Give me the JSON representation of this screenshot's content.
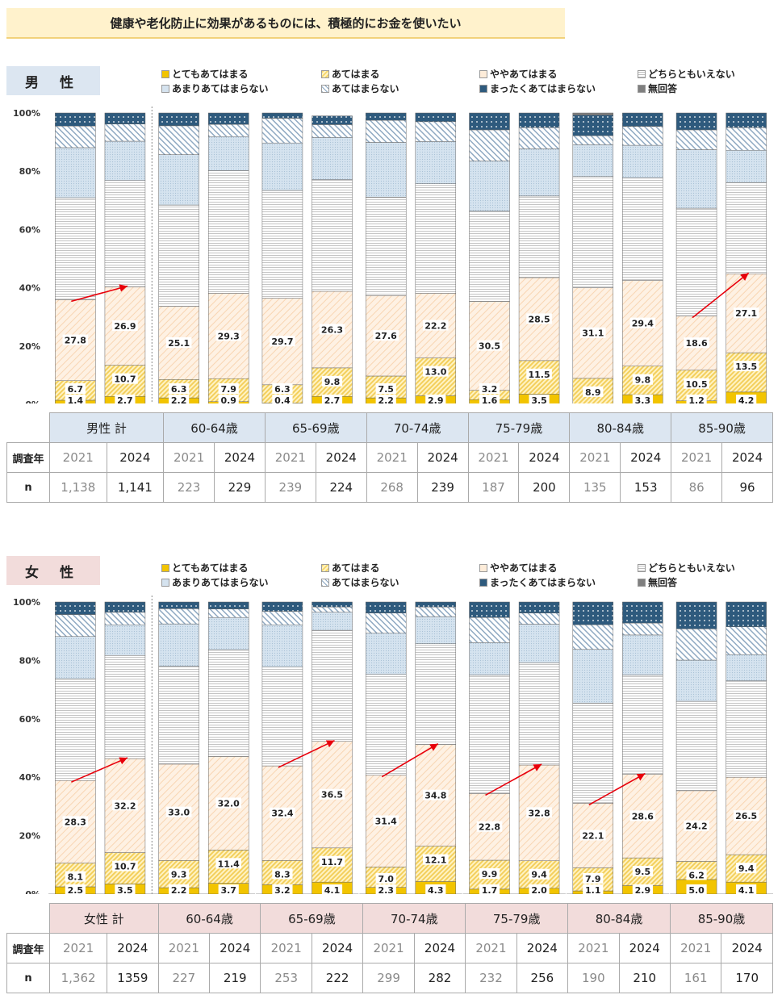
{
  "title": "健康や老化防止に効果があるものには、積極的にお金を使いたい",
  "legend": [
    {
      "label": "とてもあてはまる",
      "key": "s1"
    },
    {
      "label": "あてはまる",
      "key": "s2"
    },
    {
      "label": "ややあてはまる",
      "key": "s3"
    },
    {
      "label": "どちらともいえない",
      "key": "s4"
    },
    {
      "label": "あまりあてはまらない",
      "key": "s5"
    },
    {
      "label": "あてはまらない",
      "key": "s6"
    },
    {
      "label": "まったくあてはまらない",
      "key": "s7"
    },
    {
      "label": "無回答",
      "key": "s8"
    }
  ],
  "row_labels": {
    "year": "調査年",
    "n": "n"
  },
  "colors": {
    "male_header": "#dce6f1",
    "female_header": "#f2dcdb",
    "arrow": "#e8000b"
  },
  "sections": [
    {
      "id": "male",
      "label": "男 性",
      "groups": [
        "男性 計",
        "60-64歳",
        "65-69歳",
        "70-74歳",
        "75-79歳",
        "80-84歳",
        "85-90歳"
      ],
      "years": [
        "2021",
        "2024",
        "2021",
        "2024",
        "2021",
        "2024",
        "2021",
        "2024",
        "2021",
        "2024",
        "2021",
        "2024",
        "2021",
        "2024"
      ],
      "n": [
        "1,138",
        "1,141",
        "223",
        "229",
        "239",
        "224",
        "268",
        "239",
        "187",
        "200",
        "135",
        "153",
        "86",
        "96"
      ]
    },
    {
      "id": "female",
      "label": "女 性",
      "groups": [
        "女性 計",
        "60-64歳",
        "65-69歳",
        "70-74歳",
        "75-79歳",
        "80-84歳",
        "85-90歳"
      ],
      "years": [
        "2021",
        "2024",
        "2021",
        "2024",
        "2021",
        "2024",
        "2021",
        "2024",
        "2021",
        "2024",
        "2021",
        "2024",
        "2021",
        "2024"
      ],
      "n": [
        "1,362",
        "1359",
        "227",
        "219",
        "253",
        "222",
        "299",
        "282",
        "232",
        "256",
        "190",
        "210",
        "161",
        "170"
      ]
    }
  ],
  "chart_data": [
    {
      "type": "bar",
      "stacked": true,
      "title": "男 性",
      "ylim": [
        0,
        100
      ],
      "yticks": [
        "0%",
        "20%",
        "40%",
        "60%",
        "80%",
        "100%"
      ],
      "categories": [
        "男性 計 2021",
        "男性 計 2024",
        "60-64歳 2021",
        "60-64歳 2024",
        "65-69歳 2021",
        "65-69歳 2024",
        "70-74歳 2021",
        "70-74歳 2024",
        "75-79歳 2021",
        "75-79歳 2024",
        "80-84歳 2021",
        "80-84歳 2024",
        "85-90歳 2021",
        "85-90歳 2024"
      ],
      "series": [
        {
          "name": "とてもあてはまる",
          "values": [
            1.4,
            2.7,
            2.2,
            0.9,
            0.4,
            2.7,
            2.2,
            2.9,
            1.6,
            3.5,
            0,
            3.3,
            1.2,
            4.2
          ],
          "labels": [
            "1.4",
            "2.7",
            "2.2",
            "0.9",
            "0.4",
            "2.7",
            "2.2",
            "2.9",
            "1.6",
            "3.5",
            "",
            "3.3",
            "1.2",
            "4.2"
          ]
        },
        {
          "name": "あてはまる",
          "values": [
            6.7,
            10.7,
            6.3,
            7.9,
            6.3,
            9.8,
            7.5,
            13.0,
            3.2,
            11.5,
            8.9,
            9.8,
            10.5,
            13.5
          ],
          "labels": [
            "6.7",
            "10.7",
            "6.3",
            "7.9",
            "6.3",
            "9.8",
            "7.5",
            "13.0",
            "3.2",
            "11.5",
            "8.9",
            "9.8",
            "10.5",
            "13.5"
          ]
        },
        {
          "name": "ややあてはまる",
          "values": [
            27.8,
            26.9,
            25.1,
            29.3,
            29.7,
            26.3,
            27.6,
            22.2,
            30.5,
            28.5,
            31.1,
            29.4,
            18.6,
            27.1
          ],
          "labels": [
            "27.8",
            "26.9",
            "25.1",
            "29.3",
            "29.7",
            "26.3",
            "27.6",
            "22.2",
            "30.5",
            "28.5",
            "31.1",
            "29.4",
            "18.6",
            "27.1"
          ]
        },
        {
          "name": "どちらともいえない",
          "values": [
            35,
            36.5,
            34.8,
            42.1,
            37,
            38.3,
            33.8,
            37.6,
            31,
            28,
            38.2,
            35.2,
            37,
            31.3
          ]
        },
        {
          "name": "あまりあてはまらない",
          "values": [
            17.2,
            13.5,
            17.3,
            11.7,
            16.3,
            14.5,
            18.8,
            14.5,
            17.2,
            16.2,
            10.9,
            11.2,
            20.1,
            11.1
          ]
        },
        {
          "name": "あてはまらない",
          "values": [
            7.4,
            5.9,
            9.9,
            4.2,
            8.5,
            4.4,
            7.6,
            6.8,
            10.7,
            7.3,
            3.1,
            6.5,
            6.8,
            7.8
          ]
        },
        {
          "name": "まったくあてはまらない",
          "values": [
            4.5,
            3.8,
            4.4,
            3.9,
            1.8,
            3.0,
            2.5,
            3.0,
            5.8,
            5.0,
            7.1,
            4.6,
            5.8,
            5.0
          ]
        },
        {
          "name": "無回答",
          "values": [
            0,
            0,
            0,
            0,
            0,
            0,
            0,
            0,
            0,
            0,
            0.7,
            0,
            0,
            0
          ]
        }
      ],
      "arrows": [
        {
          "from": 0,
          "to": 1
        },
        {
          "from": 12,
          "to": 13
        }
      ]
    },
    {
      "type": "bar",
      "stacked": true,
      "title": "女 性",
      "ylim": [
        0,
        100
      ],
      "yticks": [
        "0%",
        "20%",
        "40%",
        "60%",
        "80%",
        "100%"
      ],
      "categories": [
        "女性 計 2021",
        "女性 計 2024",
        "60-64歳 2021",
        "60-64歳 2024",
        "65-69歳 2021",
        "65-69歳 2024",
        "70-74歳 2021",
        "70-74歳 2024",
        "75-79歳 2021",
        "75-79歳 2024",
        "80-84歳 2021",
        "80-84歳 2024",
        "85-90歳 2021",
        "85-90歳 2024"
      ],
      "series": [
        {
          "name": "とてもあてはまる",
          "values": [
            2.5,
            3.5,
            2.2,
            3.7,
            3.2,
            4.1,
            2.3,
            4.3,
            1.7,
            2.0,
            1.1,
            2.9,
            5.0,
            4.1
          ],
          "labels": [
            "2.5",
            "3.5",
            "2.2",
            "3.7",
            "3.2",
            "4.1",
            "2.3",
            "4.3",
            "1.7",
            "2.0",
            "1.1",
            "2.9",
            "5.0",
            "4.1"
          ]
        },
        {
          "name": "あてはまる",
          "values": [
            8.1,
            10.7,
            9.3,
            11.4,
            8.3,
            11.7,
            7.0,
            12.1,
            9.9,
            9.4,
            7.9,
            9.5,
            6.2,
            9.4
          ],
          "labels": [
            "8.1",
            "10.7",
            "9.3",
            "11.4",
            "8.3",
            "11.7",
            "7.0",
            "12.1",
            "9.9",
            "9.4",
            "7.9",
            "9.5",
            "6.2",
            "9.4"
          ]
        },
        {
          "name": "ややあてはまる",
          "values": [
            28.3,
            32.2,
            33.0,
            32.0,
            32.4,
            36.5,
            31.4,
            34.8,
            22.8,
            32.8,
            22.1,
            28.6,
            24.2,
            26.5
          ],
          "labels": [
            "28.3",
            "32.2",
            "33.0",
            "32.0",
            "32.4",
            "36.5",
            "31.4",
            "34.8",
            "22.8",
            "32.8",
            "22.1",
            "28.6",
            "24.2",
            "26.5"
          ]
        },
        {
          "name": "どちらともいえない",
          "values": [
            34.8,
            35.3,
            33.5,
            36.5,
            33.8,
            38,
            34.5,
            34.5,
            40.6,
            35,
            34.3,
            34,
            30.6,
            33
          ]
        },
        {
          "name": "あまりあてはまらない",
          "values": [
            14.5,
            10.5,
            14.5,
            11.1,
            14.5,
            6.2,
            14.1,
            9.3,
            11.1,
            13.2,
            18.4,
            13.7,
            14.1,
            9
          ]
        },
        {
          "name": "あてはまらない",
          "values": [
            7.5,
            4.3,
            5.2,
            2.9,
            4.6,
            1.8,
            6.9,
            3.3,
            8.6,
            3.8,
            8.4,
            4.1,
            10.7,
            9.5
          ]
        },
        {
          "name": "まったくあてはまらない",
          "values": [
            4.3,
            3.5,
            2.3,
            2.4,
            3.2,
            1.7,
            3.8,
            1.7,
            5.3,
            3.8,
            7.8,
            7.2,
            9.2,
            8.5
          ]
        },
        {
          "name": "無回答",
          "values": [
            0,
            0,
            0,
            0,
            0,
            0,
            0,
            0,
            0,
            0,
            0,
            0,
            0,
            0
          ]
        }
      ],
      "arrows": [
        {
          "from": 0,
          "to": 1
        },
        {
          "from": 4,
          "to": 5
        },
        {
          "from": 6,
          "to": 7
        },
        {
          "from": 8,
          "to": 9
        },
        {
          "from": 10,
          "to": 11
        }
      ]
    }
  ]
}
